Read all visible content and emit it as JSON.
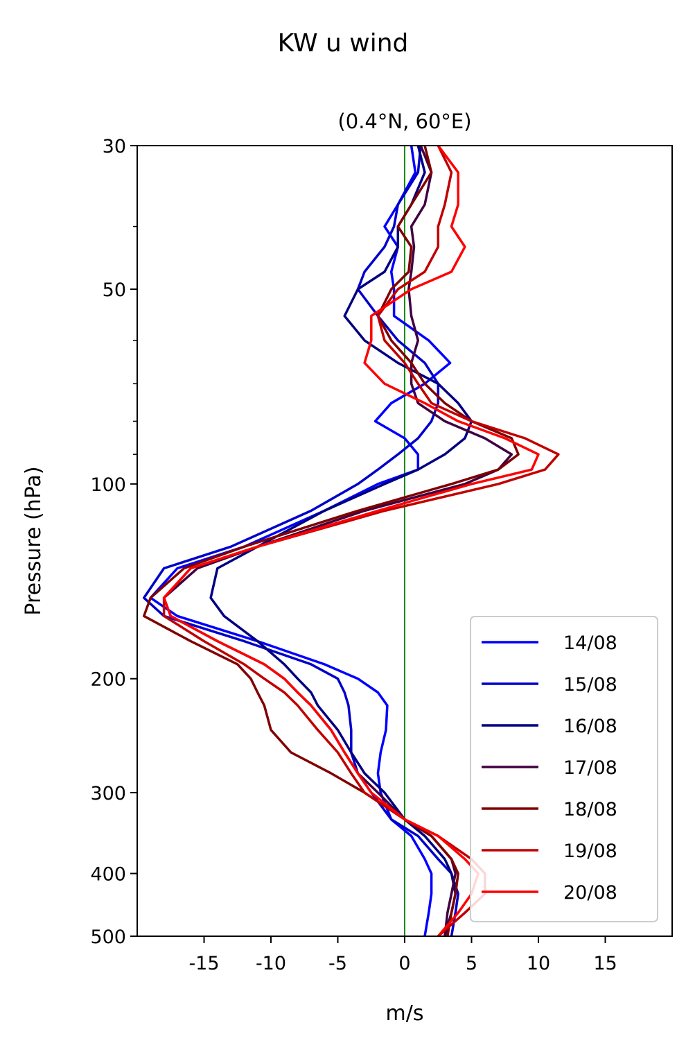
{
  "chart_data": {
    "type": "line",
    "suptitle": "KW u wind",
    "title": "(0.4°N, 60°E)",
    "xlabel": "m/s",
    "ylabel": "Pressure (hPa)",
    "xlim": [
      -20,
      20
    ],
    "ylim": [
      500,
      30
    ],
    "yscale": "log",
    "x_ticks": [
      -15,
      -10,
      -5,
      0,
      5,
      10,
      15
    ],
    "x_tick_labels": [
      "-15",
      "-10",
      "-5",
      "0",
      "5",
      "10",
      "15"
    ],
    "y_ticks": [
      30,
      50,
      100,
      200,
      300,
      400,
      500
    ],
    "y_tick_labels": [
      "30",
      "50",
      "100",
      "200",
      "300",
      "400",
      "500"
    ],
    "reference_line": {
      "x": 0,
      "color": "#008000"
    },
    "legend_position": "lower-right",
    "series": [
      {
        "name": "14/08",
        "color": "#0000ff",
        "pressure": [
          30,
          33,
          37,
          40,
          43,
          47,
          50,
          55,
          60,
          65,
          70,
          75,
          80,
          85,
          90,
          95,
          100,
          110,
          125,
          135,
          150,
          160,
          175,
          190,
          200,
          210,
          220,
          240,
          260,
          280,
          300,
          330,
          350,
          380,
          400,
          430,
          460,
          500
        ],
        "u": [
          0.5,
          0.8,
          -0.5,
          -1.5,
          -0.5,
          -1.0,
          -0.8,
          -0.8,
          1.8,
          3.4,
          1.5,
          -1.0,
          -2.2,
          0.0,
          1.0,
          1.0,
          -2.0,
          -6.0,
          -12.0,
          -17.0,
          -19.0,
          -17.0,
          -11.0,
          -6.0,
          -3.5,
          -2.0,
          -1.3,
          -1.4,
          -1.8,
          -2.0,
          -1.8,
          -1.0,
          0.5,
          1.5,
          2.0,
          2.0,
          1.8,
          1.5
        ]
      },
      {
        "name": "15/08",
        "color": "#0000cc",
        "pressure": [
          30,
          33,
          37,
          40,
          43,
          47,
          50,
          55,
          60,
          65,
          70,
          75,
          80,
          85,
          90,
          95,
          100,
          110,
          125,
          135,
          150,
          160,
          175,
          190,
          200,
          210,
          220,
          240,
          260,
          280,
          300,
          330,
          350,
          380,
          400,
          430,
          460,
          500
        ],
        "u": [
          1.2,
          1.0,
          -0.5,
          -0.8,
          -1.5,
          -3.0,
          -3.5,
          -2.0,
          -0.5,
          1.5,
          2.5,
          2.5,
          2.0,
          1.0,
          -0.5,
          -2.0,
          -3.5,
          -7.0,
          -13.0,
          -18.0,
          -19.5,
          -18.0,
          -12.0,
          -7.0,
          -5.0,
          -4.5,
          -4.2,
          -4.0,
          -4.0,
          -3.5,
          -2.5,
          -1.0,
          1.0,
          2.5,
          3.5,
          4.0,
          3.8,
          3.5
        ]
      },
      {
        "name": "16/08",
        "color": "#000080",
        "pressure": [
          30,
          33,
          37,
          40,
          43,
          47,
          50,
          55,
          60,
          65,
          70,
          75,
          80,
          85,
          90,
          95,
          100,
          110,
          125,
          135,
          150,
          160,
          175,
          190,
          200,
          210,
          220,
          240,
          260,
          280,
          300,
          330,
          350,
          380,
          400,
          430,
          460,
          500
        ],
        "u": [
          1.0,
          1.5,
          0.5,
          -0.5,
          -0.5,
          -1.5,
          -3.5,
          -4.5,
          -3.0,
          -0.5,
          2.5,
          4.0,
          5.0,
          4.5,
          3.0,
          1.0,
          -1.5,
          -6.0,
          -11.0,
          -14.0,
          -14.5,
          -13.5,
          -11.0,
          -9.0,
          -8.0,
          -7.0,
          -6.5,
          -5.0,
          -4.0,
          -3.0,
          -1.5,
          0.0,
          1.5,
          3.0,
          3.5,
          3.8,
          3.5,
          3.0
        ]
      },
      {
        "name": "17/08",
        "color": "#400040",
        "pressure": [
          30,
          33,
          37,
          40,
          43,
          47,
          50,
          55,
          60,
          65,
          70,
          75,
          80,
          85,
          90,
          95,
          100,
          110,
          125,
          135,
          150,
          160,
          175,
          190,
          200,
          210,
          220,
          240,
          260,
          280,
          300,
          330,
          350,
          380,
          400,
          430,
          460,
          500
        ],
        "u": [
          1.2,
          2.0,
          1.5,
          0.5,
          0.7,
          0.5,
          0.3,
          0.5,
          1.0,
          0.5,
          0.5,
          1.0,
          3.0,
          6.0,
          8.0,
          7.0,
          4.5,
          -3.0,
          -11.0,
          -15.5,
          -18.0,
          -17.5,
          -14.0,
          -10.5,
          -9.0,
          -8.0,
          -7.0,
          -5.5,
          -4.5,
          -3.5,
          -2.0,
          0.0,
          2.0,
          3.5,
          3.8,
          3.5,
          3.2,
          3.0
        ]
      },
      {
        "name": "18/08",
        "color": "#800000",
        "pressure": [
          30,
          33,
          37,
          40,
          43,
          47,
          50,
          55,
          60,
          65,
          70,
          75,
          80,
          85,
          90,
          95,
          100,
          110,
          125,
          135,
          150,
          160,
          175,
          190,
          200,
          210,
          220,
          240,
          260,
          280,
          300,
          330,
          350,
          380,
          400,
          430,
          460,
          500
        ],
        "u": [
          1.5,
          2.0,
          0.5,
          -0.5,
          0.5,
          0.3,
          -1.0,
          -2.0,
          -1.0,
          0.5,
          1.5,
          3.0,
          5.0,
          8.0,
          8.5,
          7.0,
          3.5,
          -3.5,
          -12.0,
          -16.5,
          -19.0,
          -19.5,
          -16.0,
          -12.5,
          -11.5,
          -11.0,
          -10.5,
          -10.0,
          -8.5,
          -5.5,
          -3.0,
          0.0,
          2.0,
          3.5,
          4.0,
          3.8,
          3.5,
          3.2
        ]
      },
      {
        "name": "19/08",
        "color": "#c00000",
        "pressure": [
          30,
          33,
          37,
          40,
          43,
          47,
          50,
          55,
          60,
          65,
          70,
          75,
          80,
          85,
          90,
          95,
          100,
          110,
          125,
          135,
          150,
          160,
          175,
          190,
          200,
          210,
          220,
          240,
          260,
          280,
          300,
          330,
          350,
          380,
          400,
          430,
          460,
          500
        ],
        "u": [
          2.5,
          3.5,
          3.0,
          2.5,
          2.5,
          1.5,
          -0.5,
          -2.0,
          -1.5,
          0.0,
          1.0,
          2.0,
          5.0,
          9.0,
          11.5,
          10.5,
          7.0,
          -1.5,
          -11.0,
          -16.0,
          -18.0,
          -18.0,
          -15.0,
          -12.0,
          -10.5,
          -9.0,
          -8.0,
          -6.5,
          -5.0,
          -4.0,
          -3.0,
          0.0,
          2.5,
          5.0,
          6.0,
          6.0,
          4.5,
          2.5
        ]
      },
      {
        "name": "20/08",
        "color": "#ff0000",
        "pressure": [
          30,
          33,
          37,
          40,
          43,
          47,
          50,
          55,
          60,
          65,
          70,
          75,
          80,
          85,
          90,
          95,
          100,
          110,
          125,
          135,
          150,
          160,
          175,
          190,
          200,
          210,
          220,
          240,
          260,
          280,
          300,
          330,
          350,
          380,
          400,
          430,
          460,
          500
        ],
        "u": [
          2.5,
          4.0,
          4.0,
          3.5,
          4.5,
          3.5,
          0.5,
          -2.5,
          -2.5,
          -3.0,
          -1.5,
          1.5,
          4.0,
          7.5,
          10.0,
          9.5,
          5.0,
          -2.0,
          -11.0,
          -16.0,
          -18.0,
          -17.5,
          -14.0,
          -10.5,
          -9.0,
          -8.0,
          -7.0,
          -5.5,
          -4.5,
          -3.5,
          -2.5,
          0.0,
          2.5,
          4.5,
          5.5,
          5.0,
          4.0,
          2.5
        ]
      }
    ]
  }
}
